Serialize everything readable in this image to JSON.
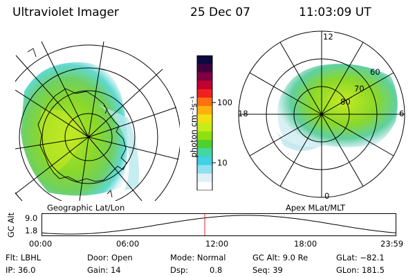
{
  "header": {
    "title": "Ultraviolet Imager",
    "date": "25 Dec 07",
    "time": "11:03:09 UT"
  },
  "left_panel": {
    "caption": "Geographic Lat/Lon"
  },
  "colorbar": {
    "unit_label": "photon cm⁻²s⁻¹",
    "ticks": [
      "100",
      "10"
    ],
    "colors": [
      "#0a0a40",
      "#400040",
      "#800040",
      "#c00030",
      "#f02020",
      "#ff7010",
      "#ffb010",
      "#f0e010",
      "#c8ec18",
      "#90e010",
      "#50d030",
      "#40d8a0",
      "#40d0e8",
      "#90e0f0",
      "#e0f0f8",
      "#ffffff"
    ]
  },
  "right_panel": {
    "caption": "Apex MLat/MLT",
    "mlt_labels": {
      "top": "12",
      "left": "18",
      "right": "6",
      "bottom": "0"
    },
    "lat_labels": [
      "60",
      "70",
      "80"
    ]
  },
  "timeline": {
    "axis_title": "GC Alt",
    "y_ticks": [
      "9.0",
      "1.8"
    ],
    "x_ticks": [
      "00:00",
      "06:00",
      "12:00",
      "18:00",
      "23:59"
    ],
    "current_fraction": 0.46,
    "marker_color": "#e02020"
  },
  "info": {
    "row1": {
      "flt": "Flt: LBHL",
      "door": "Door: Open",
      "mode": "Mode: Normal",
      "gcalt": "GC Alt: 9.0 Re",
      "glat": "GLat: −82.1"
    },
    "row2": {
      "ip": "IP: 36.0",
      "gain": "Gain: 14",
      "dsp_label": "Dsp:",
      "dsp_value": "0.8",
      "seq": "Seq: 39",
      "glon": "GLon: 181.5"
    }
  },
  "colors": {
    "aurora_green": "#8ad82a",
    "aurora_yellow": "#d8ee20",
    "aurora_cyan": "#50d8d0",
    "marker": "#e02020"
  }
}
